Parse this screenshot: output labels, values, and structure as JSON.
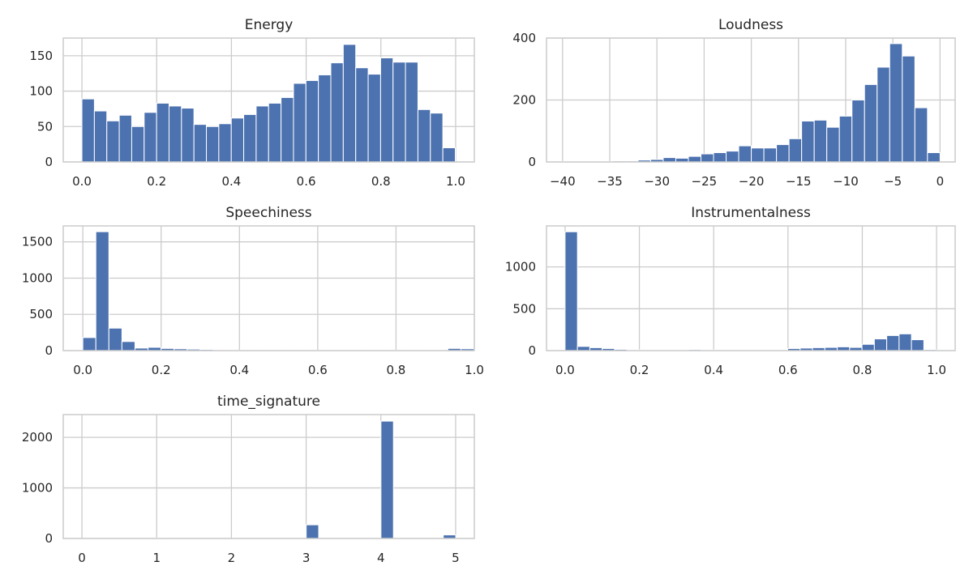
{
  "figure": {
    "background": "#ffffff",
    "bar_color": "#4c72b0",
    "grid_color": "#cccccc"
  },
  "chart_data": [
    {
      "type": "histogram",
      "title": "Energy",
      "bins": 30,
      "bin_start": 0.0,
      "bin_width": 0.0333,
      "values": [
        89,
        72,
        58,
        66,
        50,
        70,
        83,
        79,
        76,
        53,
        50,
        54,
        62,
        67,
        79,
        83,
        91,
        111,
        115,
        123,
        140,
        166,
        133,
        124,
        147,
        141,
        141,
        74,
        69,
        20
      ],
      "xlim": [
        -0.05,
        1.05
      ],
      "ylim": [
        0,
        175
      ],
      "xticks": [
        0.0,
        0.2,
        0.4,
        0.6,
        0.8,
        1.0
      ],
      "xtick_labels": [
        "0.0",
        "0.2",
        "0.4",
        "0.6",
        "0.8",
        "1.0"
      ],
      "yticks": [
        0,
        50,
        100,
        150
      ],
      "ytick_labels": [
        "0",
        "50",
        "100",
        "150"
      ],
      "grid": true
    },
    {
      "type": "histogram",
      "title": "Loudness",
      "bins": 30,
      "bin_start": -40.0,
      "bin_width": 1.3333,
      "values": [
        2,
        1,
        1,
        1,
        3,
        3,
        6,
        8,
        14,
        12,
        18,
        26,
        30,
        35,
        52,
        45,
        45,
        56,
        75,
        132,
        135,
        112,
        148,
        200,
        250,
        306,
        382,
        342,
        175,
        30
      ],
      "xlim": [
        -41.7,
        1.6
      ],
      "ylim": [
        0,
        400
      ],
      "xticks": [
        -40,
        -35,
        -30,
        -25,
        -20,
        -15,
        -10,
        -5,
        0
      ],
      "xtick_labels": [
        "−40",
        "−35",
        "−30",
        "−25",
        "−20",
        "−15",
        "−10",
        "−5",
        "0"
      ],
      "yticks": [
        0,
        200,
        400
      ],
      "ytick_labels": [
        "0",
        "200",
        "400"
      ],
      "grid": true
    },
    {
      "type": "histogram",
      "title": "Speechiness",
      "bins": 30,
      "bin_start": 0.0,
      "bin_width": 0.0333,
      "values": [
        180,
        1640,
        310,
        125,
        35,
        45,
        30,
        25,
        20,
        15,
        5,
        5,
        5,
        5,
        5,
        5,
        5,
        5,
        5,
        5,
        5,
        5,
        5,
        5,
        5,
        5,
        5,
        5,
        30,
        25
      ],
      "xlim": [
        -0.05,
        1.0
      ],
      "ylim": [
        0,
        1720
      ],
      "xticks": [
        0.0,
        0.2,
        0.4,
        0.6,
        0.8,
        1.0
      ],
      "xtick_labels": [
        "0.0",
        "0.2",
        "0.4",
        "0.6",
        "0.8",
        "1.0"
      ],
      "yticks": [
        0,
        500,
        1000,
        1500
      ],
      "ytick_labels": [
        "0",
        "500",
        "1000",
        "1500"
      ],
      "grid": true
    },
    {
      "type": "histogram",
      "title": "Instrumentalness",
      "bins": 30,
      "bin_start": 0.0,
      "bin_width": 0.0333,
      "values": [
        1420,
        50,
        35,
        25,
        15,
        8,
        8,
        8,
        8,
        8,
        12,
        8,
        8,
        5,
        5,
        8,
        8,
        8,
        25,
        30,
        35,
        38,
        45,
        38,
        75,
        140,
        180,
        200,
        130,
        12
      ],
      "xlim": [
        -0.05,
        1.05
      ],
      "ylim": [
        0,
        1490
      ],
      "xticks": [
        0.0,
        0.2,
        0.4,
        0.6,
        0.8,
        1.0
      ],
      "xtick_labels": [
        "0.0",
        "0.2",
        "0.4",
        "0.6",
        "0.8",
        "1.0"
      ],
      "yticks": [
        0,
        500,
        1000
      ],
      "ytick_labels": [
        "0",
        "500",
        "1000"
      ],
      "grid": true
    },
    {
      "type": "histogram",
      "title": "time_signature",
      "bins": 30,
      "bin_start": 0.0,
      "bin_width": 0.1667,
      "values": [
        3,
        0,
        0,
        0,
        0,
        0,
        10,
        0,
        0,
        0,
        0,
        0,
        0,
        0,
        0,
        0,
        0,
        0,
        270,
        0,
        0,
        0,
        0,
        0,
        2320,
        0,
        0,
        0,
        0,
        70
      ],
      "xlim": [
        -0.25,
        5.25
      ],
      "ylim": [
        0,
        2450
      ],
      "xticks": [
        0,
        1,
        2,
        3,
        4,
        5
      ],
      "xtick_labels": [
        "0",
        "1",
        "2",
        "3",
        "4",
        "5"
      ],
      "yticks": [
        0,
        1000,
        2000
      ],
      "ytick_labels": [
        "0",
        "1000",
        "2000"
      ],
      "grid": true
    }
  ]
}
